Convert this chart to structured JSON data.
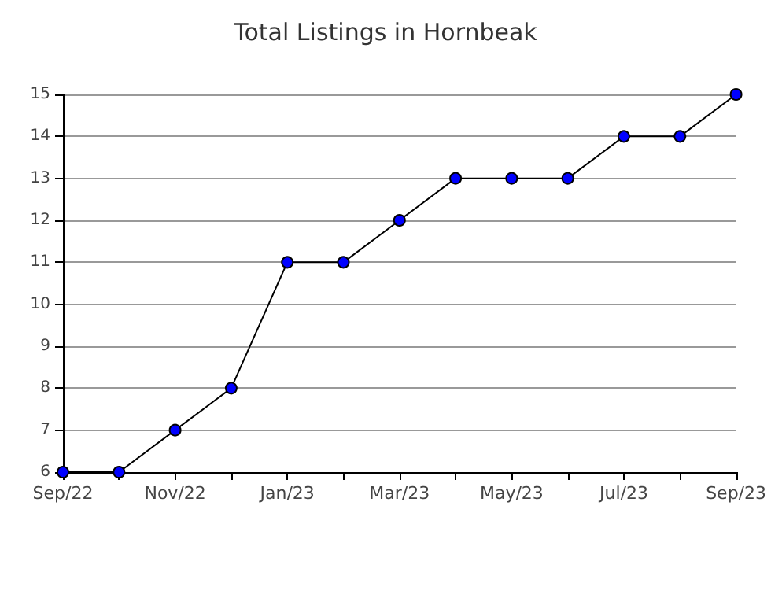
{
  "chart_data": {
    "type": "line",
    "title": "Total Listings in Hornbeak",
    "categories": [
      "Sep/22",
      null,
      "Nov/22",
      null,
      "Jan/23",
      null,
      "Mar/23",
      null,
      "May/23",
      null,
      "Jul/23",
      null,
      "Sep/23"
    ],
    "series": [
      {
        "color": "#0000ff",
        "values": [
          6,
          6,
          7,
          8,
          11,
          11,
          12,
          13,
          13,
          13,
          14,
          14,
          15
        ]
      }
    ],
    "ylim": [
      6,
      15
    ],
    "yticks": [
      6,
      7,
      8,
      9,
      10,
      11,
      12,
      13,
      14,
      15
    ],
    "grid": "y",
    "marker": "circle",
    "line_style": "solid"
  }
}
